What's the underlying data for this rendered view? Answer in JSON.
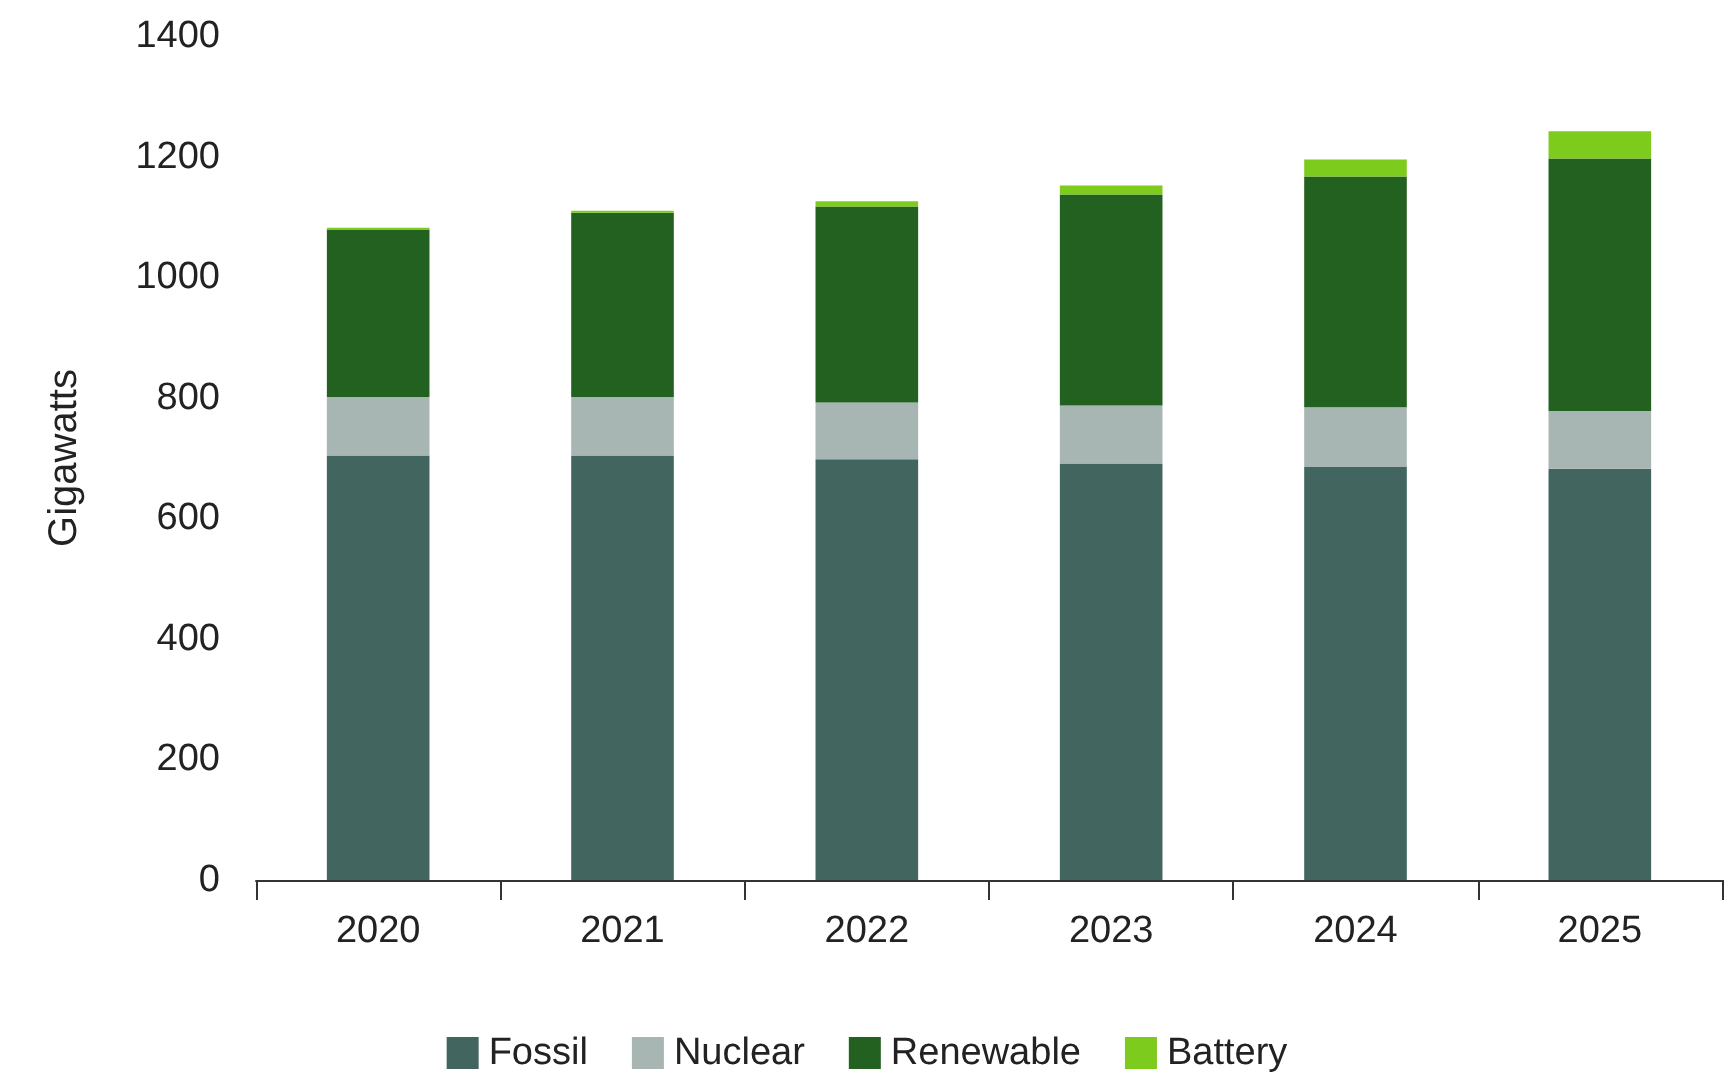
{
  "chart_data": {
    "type": "bar",
    "stacked": true,
    "ylabel": "Gigawatts",
    "categories": [
      "2020",
      "2021",
      "2022",
      "2023",
      "2024",
      "2025"
    ],
    "series": [
      {
        "name": "Fossil",
        "color": "#426560",
        "values": [
          704,
          704,
          698,
          691,
          685,
          682
        ]
      },
      {
        "name": "Nuclear",
        "color": "#a7b5b3",
        "values": [
          97,
          97,
          94,
          96,
          99,
          96
        ]
      },
      {
        "name": "Renewable",
        "color": "#236120",
        "values": [
          278,
          306,
          325,
          350,
          383,
          419
        ]
      },
      {
        "name": "Battery",
        "color": "#7dcc1d",
        "values": [
          3,
          3,
          9,
          15,
          28,
          45
        ]
      }
    ],
    "ylim": [
      0,
      1400
    ],
    "yticks": [
      0,
      200,
      400,
      600,
      800,
      1000,
      1200,
      1400
    ],
    "grid": false,
    "legend": "bottom"
  }
}
